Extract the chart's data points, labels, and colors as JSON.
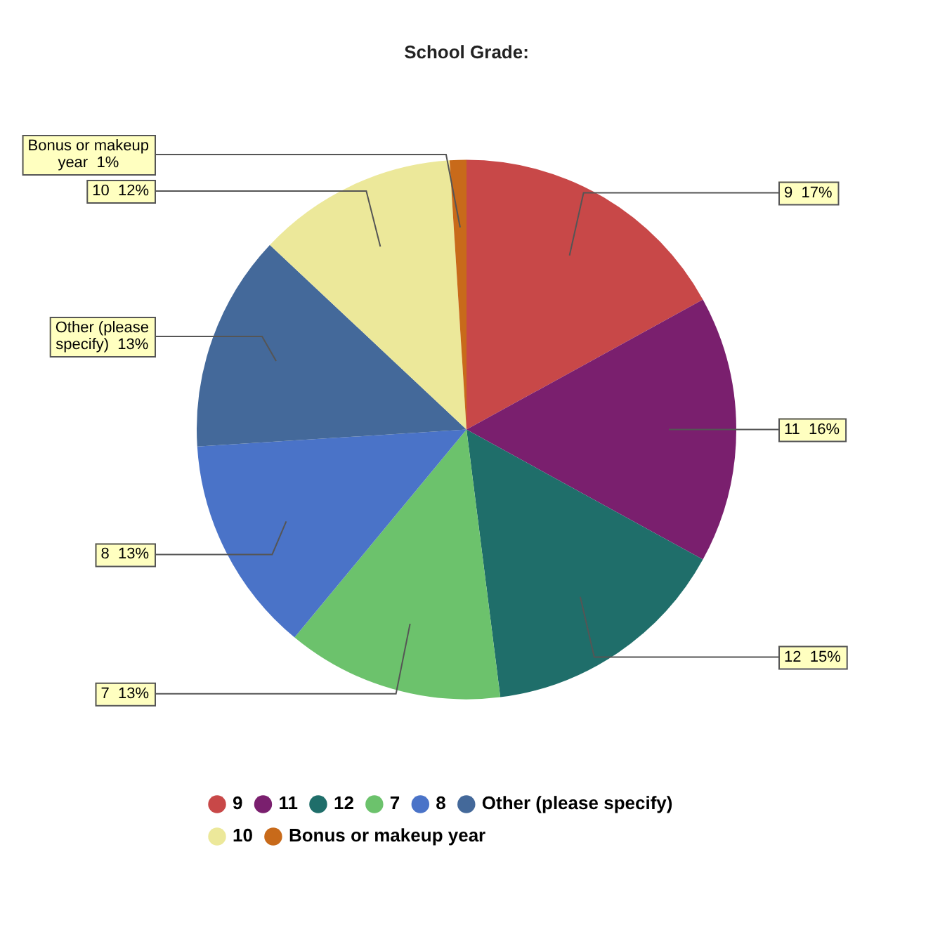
{
  "chart_data": {
    "type": "pie",
    "title": "School Grade:",
    "categories": [
      "9",
      "11",
      "12",
      "7",
      "8",
      "Other (please specify)",
      "10",
      "Bonus or makeup year"
    ],
    "values": [
      17,
      16,
      15,
      13,
      13,
      13,
      12,
      1
    ],
    "value_labels": [
      "9  17%",
      "11  16%",
      "12  15%",
      "7  13%",
      "8  13%",
      "Other (please specify)  13%",
      "10  12%",
      "Bonus or makeup year  1%"
    ],
    "colors": [
      "#c84848",
      "#7a1f6e",
      "#1f6e6a",
      "#6cc26c",
      "#4a73c8",
      "#44699a",
      "#ece89a",
      "#c86a1a"
    ],
    "legend": "bottom"
  }
}
